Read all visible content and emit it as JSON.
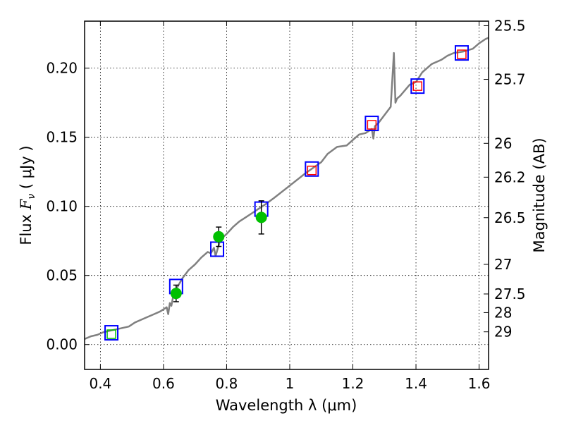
{
  "chart_data": {
    "type": "scatter",
    "xlabel": "Wavelength  λ (μm)",
    "ylabel": "Flux  F_ν  ( μJy )",
    "ylabel_parts": {
      "prefix": "Flux  ",
      "symbol": "F",
      "subscript": "ν",
      "suffix": "  ( μJy )"
    },
    "y2label": "Magnitude (AB)",
    "xlim": [
      0.35,
      1.63
    ],
    "ylim": [
      -0.018,
      0.234
    ],
    "grid": true,
    "x_ticks": [
      0.4,
      0.6,
      0.8,
      1.0,
      1.2,
      1.4,
      1.6
    ],
    "x_tick_labels": [
      "0.4",
      "0.6",
      "0.8",
      "1",
      "1.2",
      "1.4",
      "1.6"
    ],
    "y_ticks": [
      0.0,
      0.05,
      0.1,
      0.15,
      0.2
    ],
    "y_tick_labels": [
      "0.00",
      "0.05",
      "0.10",
      "0.15",
      "0.20"
    ],
    "right_axis_ticks": [
      {
        "label": "25.5",
        "flux": 0.2307
      },
      {
        "label": "25.7",
        "flux": 0.1919
      },
      {
        "label": "26",
        "flux": 0.1456
      },
      {
        "label": "26.2",
        "flux": 0.1211
      },
      {
        "label": "26.5",
        "flux": 0.0918
      },
      {
        "label": "27",
        "flux": 0.058
      },
      {
        "label": "27.5",
        "flux": 0.0366
      },
      {
        "label": "28",
        "flux": 0.0231
      },
      {
        "label": "29",
        "flux": 0.0092
      }
    ],
    "colors": {
      "sed_line": "#808080",
      "model_box": "#0000ff",
      "observed_box": "#ff0000",
      "green_box": "#00c000",
      "detection_point": "#00c000",
      "error_bar": "#000000"
    },
    "series": [
      {
        "kind": "line",
        "x": [
          0.35,
          0.37,
          0.39,
          0.41,
          0.43,
          0.45,
          0.47,
          0.49,
          0.51,
          0.53,
          0.55,
          0.57,
          0.59,
          0.61,
          0.615,
          0.62,
          0.625,
          0.63,
          0.64,
          0.66,
          0.68,
          0.7,
          0.72,
          0.74,
          0.75,
          0.76,
          0.765,
          0.77,
          0.775,
          0.78,
          0.8,
          0.82,
          0.84,
          0.86,
          0.88,
          0.9,
          0.92,
          0.95,
          1.0,
          1.05,
          1.1,
          1.12,
          1.15,
          1.18,
          1.2,
          1.22,
          1.24,
          1.26,
          1.265,
          1.27,
          1.28,
          1.3,
          1.32,
          1.33,
          1.335,
          1.34,
          1.35,
          1.38,
          1.4,
          1.42,
          1.45,
          1.48,
          1.5,
          1.52,
          1.55,
          1.58,
          1.6,
          1.62,
          1.63
        ],
        "y": [
          0.004,
          0.006,
          0.007,
          0.009,
          0.01,
          0.011,
          0.012,
          0.013,
          0.016,
          0.018,
          0.02,
          0.022,
          0.024,
          0.027,
          0.022,
          0.03,
          0.028,
          0.034,
          0.04,
          0.048,
          0.054,
          0.058,
          0.063,
          0.067,
          0.066,
          0.07,
          0.064,
          0.068,
          0.072,
          0.076,
          0.08,
          0.085,
          0.089,
          0.092,
          0.095,
          0.098,
          0.101,
          0.106,
          0.115,
          0.124,
          0.132,
          0.138,
          0.143,
          0.144,
          0.148,
          0.152,
          0.153,
          0.156,
          0.149,
          0.158,
          0.16,
          0.166,
          0.172,
          0.211,
          0.175,
          0.178,
          0.18,
          0.188,
          0.19,
          0.197,
          0.203,
          0.206,
          0.209,
          0.211,
          0.212,
          0.214,
          0.218,
          0.221,
          0.222
        ]
      },
      {
        "kind": "model_box",
        "x": [
          0.435,
          0.64,
          0.77,
          0.91,
          1.07,
          1.26,
          1.405,
          1.545
        ],
        "y": [
          0.0085,
          0.042,
          0.069,
          0.098,
          0.127,
          0.16,
          0.187,
          0.211
        ]
      },
      {
        "kind": "observed_box",
        "x": [
          1.07,
          1.26,
          1.405,
          1.545
        ],
        "y": [
          0.126,
          0.159,
          0.187,
          0.21
        ]
      },
      {
        "kind": "green_box",
        "x": [
          0.435
        ],
        "y": [
          0.0075
        ]
      },
      {
        "kind": "detection",
        "x": [
          0.64,
          0.775,
          0.91
        ],
        "y": [
          0.037,
          0.078,
          0.092
        ],
        "yerr": [
          0.006,
          0.007,
          0.012
        ]
      }
    ]
  }
}
